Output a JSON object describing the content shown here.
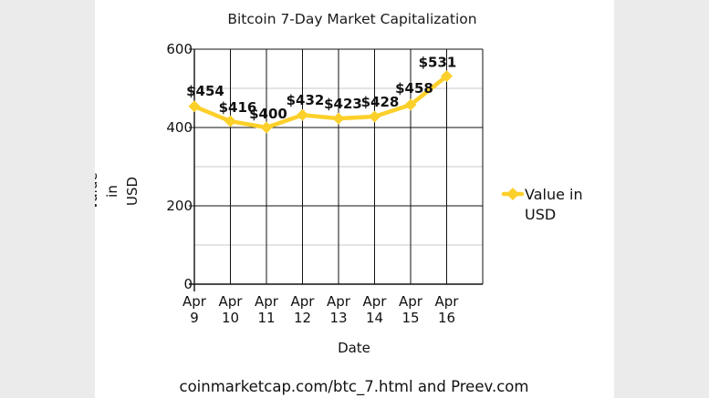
{
  "chart_data": {
    "type": "line",
    "title": "Bitcoin 7-Day Market Capitalization",
    "xlabel": "Date",
    "ylabel": "Value in USD",
    "categories": [
      "Apr 9",
      "Apr 10",
      "Apr 11",
      "Apr 12",
      "Apr 13",
      "Apr 14",
      "Apr 15",
      "Apr 16"
    ],
    "series": [
      {
        "name": "Value in USD",
        "values": [
          454,
          416,
          400,
          432,
          423,
          428,
          458,
          531
        ],
        "labels": [
          "$454",
          "$416",
          "$400",
          "$432",
          "$423",
          "$428",
          "$458",
          "$531"
        ]
      }
    ],
    "ylim": [
      0,
      600
    ],
    "yticks": [
      0,
      200,
      400,
      600
    ],
    "grid": true,
    "legend": "right",
    "colors": {
      "series": "#fcd02a",
      "grid_major": "#111111",
      "grid_minor": "#c8c8c8"
    }
  },
  "footer": {
    "source": "coinmarketcap.com/btc_7.html and Preev.com"
  }
}
